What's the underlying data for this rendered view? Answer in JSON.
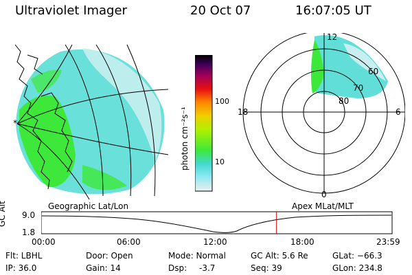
{
  "header": {
    "instrument": "Ultraviolet Imager",
    "date": "20 Oct 07",
    "time": "16:07:05 UT"
  },
  "colorbar": {
    "unit_label": "photon cm⁻²s⁻¹",
    "ticks": [
      "100",
      "10"
    ]
  },
  "polar_plot": {
    "mlt_labels": {
      "top": "12",
      "left": "18",
      "right": "6",
      "bottom": "0"
    },
    "mlat_labels": [
      "60",
      "70",
      "80"
    ]
  },
  "timeline": {
    "left_label": "Geographic Lat/Lon",
    "right_label": "Apex MLat/MLT",
    "y_axis_label": "GC Alt",
    "y_ticks": [
      "9.0",
      "1.8"
    ],
    "x_ticks": [
      "00:00",
      "06:00",
      "12:00",
      "18:00",
      "23:59"
    ],
    "current_time_fraction": 0.67
  },
  "status": {
    "flt": "Flt: LBHL",
    "ip": "IP: 36.0",
    "door": "Door: Open",
    "gain": "Gain: 14",
    "mode": "Mode: Normal",
    "dsp_label": "Dsp:",
    "dsp_value": "-3.7",
    "gc_alt": "GC Alt: 5.6 Re",
    "seq": "Seq: 39",
    "glat": "GLat: −66.3",
    "glon": "GLon: 234.8"
  },
  "colors": {
    "emission_green": "#3ee83a",
    "emission_cyan": "#44d8d0",
    "emission_light": "#c8eef0",
    "timeline_marker": "#cc0000"
  }
}
